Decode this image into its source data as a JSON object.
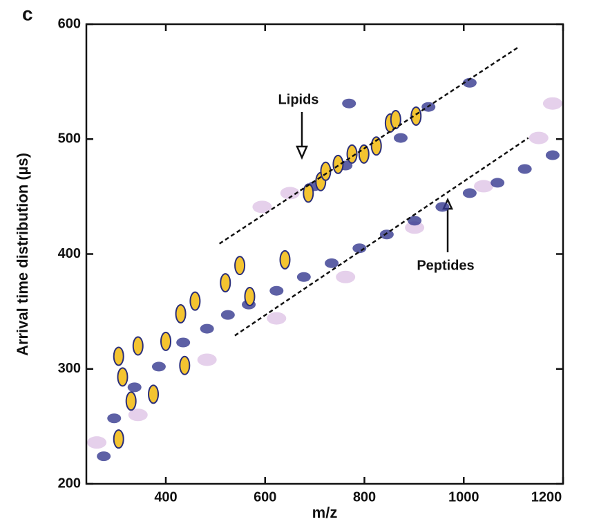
{
  "chart_data": {
    "type": "scatter",
    "panel_label": "c",
    "xlabel": "m/z",
    "ylabel": "Arrival time distribution (µs)",
    "xlim": [
      240,
      1200
    ],
    "ylim": [
      200,
      600
    ],
    "xticks": [
      400,
      600,
      800,
      1000,
      1200
    ],
    "yticks": [
      200,
      300,
      400,
      500,
      600
    ],
    "annotations": [
      "Lipids",
      "Peptides"
    ],
    "series": [
      {
        "color": "#cfaadb",
        "x": [
          261,
          344,
          483,
          623,
          762,
          901,
          1040,
          1151,
          1179,
          650,
          594
        ],
        "y": [
          236,
          260,
          308,
          344,
          380,
          423,
          459,
          501,
          531,
          453,
          441
        ]
      },
      {
        "color": "#34388f",
        "x": [
          275,
          296,
          337,
          386,
          435,
          483,
          525,
          567,
          623,
          678,
          734,
          790,
          845,
          901,
          957,
          1012,
          1068,
          1123,
          1179,
          699,
          762,
          769,
          873,
          929,
          1012
        ],
        "y": [
          224,
          257,
          284,
          302,
          323,
          335,
          347,
          356,
          368,
          380,
          392,
          405,
          417,
          429,
          441,
          453,
          462,
          474,
          486,
          459,
          477,
          531,
          501,
          528,
          549
        ]
      },
      {
        "color": "#f4c430",
        "x": [
          305,
          305,
          313,
          330,
          344,
          375,
          400,
          430,
          438,
          459,
          520,
          549,
          569,
          640,
          687,
          712,
          722,
          747,
          775,
          799,
          824,
          852,
          863,
          904
        ],
        "y": [
          239,
          311,
          293,
          272,
          320,
          278,
          324,
          348,
          303,
          359,
          375,
          390,
          363,
          395,
          453,
          463,
          472,
          478,
          487,
          487,
          494,
          514,
          517,
          520
        ]
      }
    ],
    "lines": [
      {
        "x": [
          508,
          1110
        ],
        "y": [
          409,
          580
        ]
      },
      {
        "x": [
          539,
          1130
        ],
        "y": [
          329,
          501
        ]
      }
    ]
  }
}
